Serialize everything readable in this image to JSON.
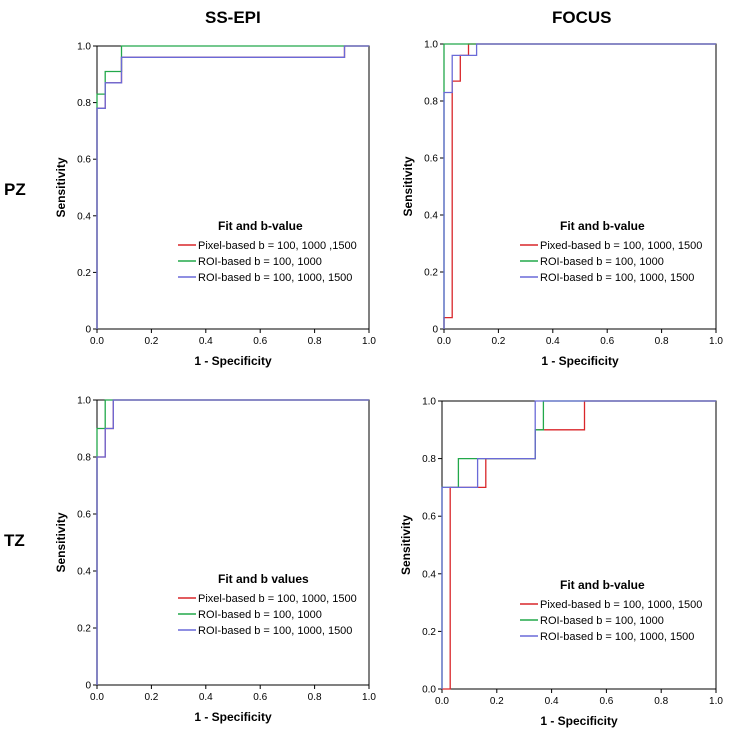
{
  "column_titles": [
    "SS-EPI",
    "FOCUS"
  ],
  "row_titles": [
    "PZ",
    "TZ"
  ],
  "colors": {
    "red": "#d9262a",
    "green": "#22a84a",
    "blue": "#6a6ad8"
  },
  "chart_data": [
    {
      "type": "line",
      "panel": "PZ / SS-EPI",
      "xlabel": "1 - Specificity",
      "ylabel": "Sensitivity",
      "xlim": [
        0,
        1
      ],
      "ylim": [
        0,
        1
      ],
      "xticks": [
        "0.0",
        "0.2",
        "0.4",
        "0.6",
        "0.8",
        "1.0"
      ],
      "yticks": [
        "0",
        "0.2",
        "0.4",
        "0.6",
        "0.8",
        "1.0"
      ],
      "legend_title": "Fit and b-value",
      "series": [
        {
          "name": "Pixel-based b = 100, 1000 ,1500",
          "color": "red",
          "x": [
            0,
            0,
            0.03,
            0.03,
            0.09,
            0.09,
            0.91,
            0.91,
            1
          ],
          "y": [
            0,
            0.78,
            0.78,
            0.87,
            0.87,
            0.96,
            0.96,
            1,
            1
          ]
        },
        {
          "name": "ROI-based b = 100, 1000",
          "color": "green",
          "x": [
            0,
            0,
            0.03,
            0.03,
            0.09,
            0.09,
            1
          ],
          "y": [
            0,
            0.83,
            0.83,
            0.91,
            0.91,
            1,
            1
          ]
        },
        {
          "name": "ROI-based b = 100, 1000, 1500",
          "color": "blue",
          "x": [
            0,
            0,
            0.03,
            0.03,
            0.09,
            0.09,
            0.91,
            0.91,
            1
          ],
          "y": [
            0,
            0.78,
            0.78,
            0.87,
            0.87,
            0.96,
            0.96,
            1,
            1
          ]
        }
      ]
    },
    {
      "type": "line",
      "panel": "PZ / FOCUS",
      "xlabel": "1 - Specificity",
      "ylabel": "Sensitivity",
      "xlim": [
        0,
        1
      ],
      "ylim": [
        0,
        1
      ],
      "xticks": [
        "0.0",
        "0.2",
        "0.4",
        "0.6",
        "0.8",
        "1.0"
      ],
      "yticks": [
        "0",
        "0.2",
        "0.4",
        "0.6",
        "0.8",
        "1.0"
      ],
      "legend_title": "Fit and b-value",
      "series": [
        {
          "name": "Pixed-based b = 100, 1000, 1500",
          "color": "red",
          "x": [
            0,
            0,
            0.03,
            0.03,
            0.06,
            0.06,
            0.09,
            0.09,
            1
          ],
          "y": [
            0,
            0.04,
            0.04,
            0.87,
            0.87,
            0.96,
            0.96,
            1,
            1
          ]
        },
        {
          "name": "ROI-based b = 100, 1000",
          "color": "green",
          "x": [
            0,
            0,
            1
          ],
          "y": [
            0,
            1,
            1
          ]
        },
        {
          "name": "ROI-based b = 100, 1000, 1500",
          "color": "blue",
          "x": [
            0,
            0,
            0.03,
            0.03,
            0.12,
            0.12,
            1
          ],
          "y": [
            0,
            0.83,
            0.83,
            0.96,
            0.96,
            1,
            1
          ]
        }
      ]
    },
    {
      "type": "line",
      "panel": "TZ / SS-EPI",
      "xlabel": "1 - Specificity",
      "ylabel": "Sensitivity",
      "xlim": [
        0,
        1
      ],
      "ylim": [
        0,
        1
      ],
      "xticks": [
        "0.0",
        "0.2",
        "0.4",
        "0.6",
        "0.8",
        "1.0"
      ],
      "yticks": [
        "0",
        "0.2",
        "0.4",
        "0.6",
        "0.8",
        "1.0"
      ],
      "legend_title": "Fit and b values",
      "series": [
        {
          "name": "Pixel-based b = 100, 1000, 1500",
          "color": "red",
          "x": [
            0,
            0,
            0.03,
            0.03,
            0.06,
            0.06,
            1
          ],
          "y": [
            0,
            0.8,
            0.8,
            0.9,
            0.9,
            1,
            1
          ]
        },
        {
          "name": "ROI-based b = 100, 1000",
          "color": "green",
          "x": [
            0,
            0,
            0.03,
            0.03,
            1
          ],
          "y": [
            0,
            0.9,
            0.9,
            1,
            1
          ]
        },
        {
          "name": "ROI-based b = 100, 1000, 1500",
          "color": "blue",
          "x": [
            0,
            0,
            0.03,
            0.03,
            0.06,
            0.06,
            1
          ],
          "y": [
            0,
            0.8,
            0.8,
            0.9,
            0.9,
            1,
            1
          ]
        }
      ]
    },
    {
      "type": "line",
      "panel": "TZ / FOCUS",
      "xlabel": "1 - Specificity",
      "ylabel": "Sensitivity",
      "xlim": [
        0,
        1
      ],
      "ylim": [
        0,
        1
      ],
      "xticks": [
        "0.0",
        "0.2",
        "0.4",
        "0.6",
        "0.8",
        "1.0"
      ],
      "yticks": [
        "0.0",
        "0.2",
        "0.4",
        "0.6",
        "0.8",
        "1.0"
      ],
      "legend_title": "Fit and b-value",
      "series": [
        {
          "name": "Pixed-based b = 100, 1000, 1500",
          "color": "red",
          "x": [
            0,
            0.03,
            0.03,
            0.06,
            0.06,
            0.09,
            0.09,
            0.16,
            0.16,
            0.34,
            0.34,
            0.52,
            0.52,
            1
          ],
          "y": [
            0,
            0,
            0.7,
            0.7,
            0.7,
            0.7,
            0.7,
            0.7,
            0.8,
            0.8,
            0.9,
            0.9,
            1,
            1
          ]
        },
        {
          "name": "ROI-based b = 100, 1000",
          "color": "green",
          "x": [
            0,
            0,
            0.06,
            0.06,
            0.13,
            0.13,
            0.34,
            0.34,
            0.37,
            0.37,
            1
          ],
          "y": [
            0,
            0.7,
            0.7,
            0.8,
            0.8,
            0.8,
            0.8,
            0.9,
            0.9,
            1,
            1
          ]
        },
        {
          "name": "ROI-based b = 100, 1000, 1500",
          "color": "blue",
          "x": [
            0,
            0,
            0.13,
            0.13,
            0.34,
            0.34,
            1
          ],
          "y": [
            0,
            0.7,
            0.7,
            0.8,
            0.8,
            1,
            1
          ]
        }
      ]
    }
  ]
}
